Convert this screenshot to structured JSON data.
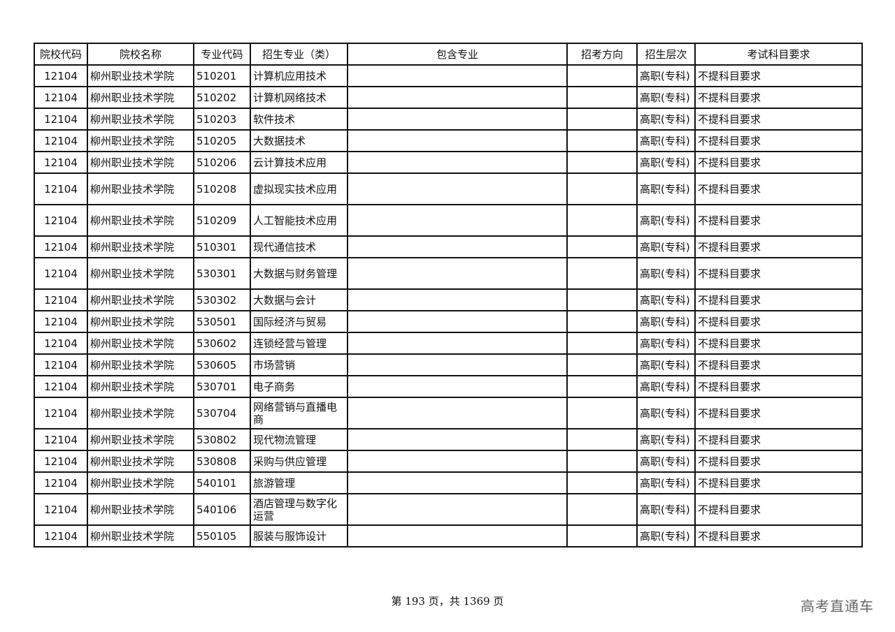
{
  "table": {
    "headers": [
      "院校代码",
      "院校名称",
      "专业代码",
      "招生专业（类）",
      "包含专业",
      "招考方向",
      "招生层次",
      "考试科目要求"
    ],
    "rows": [
      {
        "school_code": "12104",
        "school_name": "柳州职业技术学院",
        "major_code": "510201",
        "major": "计算机应用技术",
        "included": "",
        "direction": "",
        "level": "高职(专科)",
        "requirement": "不提科目要求"
      },
      {
        "school_code": "12104",
        "school_name": "柳州职业技术学院",
        "major_code": "510202",
        "major": "计算机网络技术",
        "included": "",
        "direction": "",
        "level": "高职(专科)",
        "requirement": "不提科目要求"
      },
      {
        "school_code": "12104",
        "school_name": "柳州职业技术学院",
        "major_code": "510203",
        "major": "软件技术",
        "included": "",
        "direction": "",
        "level": "高职(专科)",
        "requirement": "不提科目要求"
      },
      {
        "school_code": "12104",
        "school_name": "柳州职业技术学院",
        "major_code": "510205",
        "major": "大数据技术",
        "included": "",
        "direction": "",
        "level": "高职(专科)",
        "requirement": "不提科目要求"
      },
      {
        "school_code": "12104",
        "school_name": "柳州职业技术学院",
        "major_code": "510206",
        "major": "云计算技术应用",
        "included": "",
        "direction": "",
        "level": "高职(专科)",
        "requirement": "不提科目要求"
      },
      {
        "school_code": "12104",
        "school_name": "柳州职业技术学院",
        "major_code": "510208",
        "major": "虚拟现实技术应用",
        "included": "",
        "direction": "",
        "level": "高职(专科)",
        "requirement": "不提科目要求"
      },
      {
        "school_code": "12104",
        "school_name": "柳州职业技术学院",
        "major_code": "510209",
        "major": "人工智能技术应用",
        "included": "",
        "direction": "",
        "level": "高职(专科)",
        "requirement": "不提科目要求"
      },
      {
        "school_code": "12104",
        "school_name": "柳州职业技术学院",
        "major_code": "510301",
        "major": "现代通信技术",
        "included": "",
        "direction": "",
        "level": "高职(专科)",
        "requirement": "不提科目要求"
      },
      {
        "school_code": "12104",
        "school_name": "柳州职业技术学院",
        "major_code": "530301",
        "major": "大数据与财务管理",
        "included": "",
        "direction": "",
        "level": "高职(专科)",
        "requirement": "不提科目要求"
      },
      {
        "school_code": "12104",
        "school_name": "柳州职业技术学院",
        "major_code": "530302",
        "major": "大数据与会计",
        "included": "",
        "direction": "",
        "level": "高职(专科)",
        "requirement": "不提科目要求"
      },
      {
        "school_code": "12104",
        "school_name": "柳州职业技术学院",
        "major_code": "530501",
        "major": "国际经济与贸易",
        "included": "",
        "direction": "",
        "level": "高职(专科)",
        "requirement": "不提科目要求"
      },
      {
        "school_code": "12104",
        "school_name": "柳州职业技术学院",
        "major_code": "530602",
        "major": "连锁经营与管理",
        "included": "",
        "direction": "",
        "level": "高职(专科)",
        "requirement": "不提科目要求"
      },
      {
        "school_code": "12104",
        "school_name": "柳州职业技术学院",
        "major_code": "530605",
        "major": "市场营销",
        "included": "",
        "direction": "",
        "level": "高职(专科)",
        "requirement": "不提科目要求"
      },
      {
        "school_code": "12104",
        "school_name": "柳州职业技术学院",
        "major_code": "530701",
        "major": "电子商务",
        "included": "",
        "direction": "",
        "level": "高职(专科)",
        "requirement": "不提科目要求"
      },
      {
        "school_code": "12104",
        "school_name": "柳州职业技术学院",
        "major_code": "530704",
        "major": "网络营销与直播电商",
        "included": "",
        "direction": "",
        "level": "高职(专科)",
        "requirement": "不提科目要求"
      },
      {
        "school_code": "12104",
        "school_name": "柳州职业技术学院",
        "major_code": "530802",
        "major": "现代物流管理",
        "included": "",
        "direction": "",
        "level": "高职(专科)",
        "requirement": "不提科目要求"
      },
      {
        "school_code": "12104",
        "school_name": "柳州职业技术学院",
        "major_code": "530808",
        "major": "采购与供应管理",
        "included": "",
        "direction": "",
        "level": "高职(专科)",
        "requirement": "不提科目要求"
      },
      {
        "school_code": "12104",
        "school_name": "柳州职业技术学院",
        "major_code": "540101",
        "major": "旅游管理",
        "included": "",
        "direction": "",
        "level": "高职(专科)",
        "requirement": "不提科目要求"
      },
      {
        "school_code": "12104",
        "school_name": "柳州职业技术学院",
        "major_code": "540106",
        "major": "酒店管理与数字化运营",
        "included": "",
        "direction": "",
        "level": "高职(专科)",
        "requirement": "不提科目要求"
      },
      {
        "school_code": "12104",
        "school_name": "柳州职业技术学院",
        "major_code": "550105",
        "major": "服装与服饰设计",
        "included": "",
        "direction": "",
        "level": "高职(专科)",
        "requirement": "不提科目要求"
      }
    ]
  },
  "footer": {
    "page_text": "第 193 页，共 1369 页"
  },
  "watermark": "高考直通车"
}
